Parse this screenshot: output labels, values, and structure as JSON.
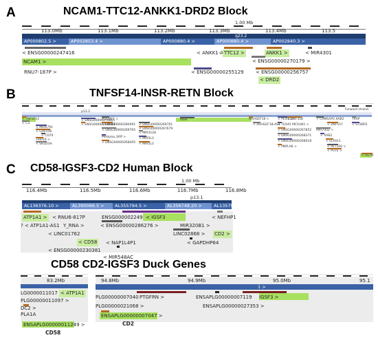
{
  "panels": {
    "A": {
      "letter": "A",
      "title": "NCAM1-TTC12-ANKK1-DRD2 Block",
      "scale": "1.00 Mb",
      "ticks": [
        "113.0Mb",
        "113.1Mb",
        "113.2Mb",
        "113.3Mb",
        "113.4Mb",
        "113.5"
      ],
      "band": "q23.2",
      "contigs": [
        "AP000802.5 >",
        "AP002853.4 >",
        "AP000880.4 >",
        "AP000880.4 >",
        "AP002840.3 >"
      ],
      "genes": {
        "ens247416": "< ENSG00000247416",
        "ncam1": "NCAM1 >",
        "ankk1_as1": "< ANKK1-AS1",
        "ttc12": "TTC12 >",
        "ankk1": "ANKK1 >",
        "mir4301": "< MIR4301",
        "ens270179": "< ENSG00000270179 >",
        "rnu7": "RNU7-187P >",
        "ens255129": "< ENSG00000255129",
        "ens256757": "< ENSG00000256757",
        "drd2": "< DRD2"
      }
    },
    "B": {
      "letter": "B",
      "title": "TNFSF14-INSR-RETN Block",
      "band": "p13.3",
      "forward": "Forward strand",
      "labels": [
        "< TNFSF14",
        "< C3",
        "< MIR6791",
        "< GPR108",
        "< CD70",
        "TRIP10 >",
        "< SH2D3A",
        "< ENSG00000276865",
        "< ENSG00000269690",
        "ADGRE1 >",
        "< ENSG00000280091",
        "< ENSG00000269765",
        "Metazoa_SRP >",
        "< ENSG00000268405",
        "< ENSG00000269761",
        "< ENSG00000267679",
        "< MIR3128",
        "< MIR5L3",
        "< MIR5L3",
        "INSR",
        "ARHGEF18 >",
        "< ARHGEF18-AS1",
        "< PEX11G",
        "< ZNF358",
        "< TEX45 MCOLN1 >",
        "< ENSG00000267852",
        "< ENSG00000268371",
        "< ENSG00000268018",
        "< PNPLA6 >",
        "< CAMSAP3 XAB2",
        "< ZNF557",
        "MIR7002 >",
        "< XAB2",
        "< ELAVL1",
        "< PET100 >",
        "< PCP2 >",
        "TRAP",
        "< STXBP2",
        "< RETN"
      ]
    },
    "C": {
      "letter": "C",
      "title": "CD58-IGSF3-CD2 Human Block",
      "scale": "1.00 Mb",
      "ticks": [
        "116.4Mb",
        "116.5Mb",
        "116.6Mb",
        "116.7Mb",
        "116.8Mb"
      ],
      "band": "p13.1",
      "contigs": [
        "AL136376.10 >",
        "AL390066.5 >",
        "AL355794.5 >",
        "AL356748.20 >",
        "AL135798"
      ],
      "genes": {
        "atp1a1": "ATP1A1 >",
        "rnu6": "< RNU6-817P",
        "ens224959": "ENSG00000224959",
        "igsf3": "< IGSF3",
        "nefhp1": "< NEFHP1",
        "atp1a1_as1": "? < ATP1A1-AS1",
        "yrna": "Y_RNA >",
        "ens286276": "< ENSG00000286276 >",
        "mir320b1": "MIR320B1 >",
        "linc01762": "< LINC01762",
        "linc02868": "LINC02868 >",
        "cd2": "CD2 >",
        "cd58": "< CD58",
        "nap1l4p1": "< NAP1L4P1",
        "gapdhp64": "< GAPDHP64",
        "ens230381": "< ENSG00000230381",
        "mir548ac": "< MIR548AC"
      }
    },
    "D": {
      "title": "CD58   CD2-IGSF3 Duck Genes",
      "left": {
        "tick": "83.2Mb",
        "labels": [
          "LG0000011017",
          "< ATP1A1",
          "PLG00000011097 >",
          "DC2 >",
          "PLA1A",
          "ENSAPLG00000011249 >"
        ],
        "caption": "CD58"
      },
      "right": {
        "ticks": [
          "94.8Mb",
          "94.9Mb",
          "95.0Mb",
          "95.1"
        ],
        "band_label": "1 >",
        "labels": [
          "PLG00000007040",
          "PTGFRN >",
          "ENSAPLG00000007119",
          "IGSF3 >",
          "PLG00000021068 >",
          "ENSAPLG00000027353 >",
          "ENSAPLG00000007047 >"
        ],
        "caption": "CD2"
      }
    }
  }
}
